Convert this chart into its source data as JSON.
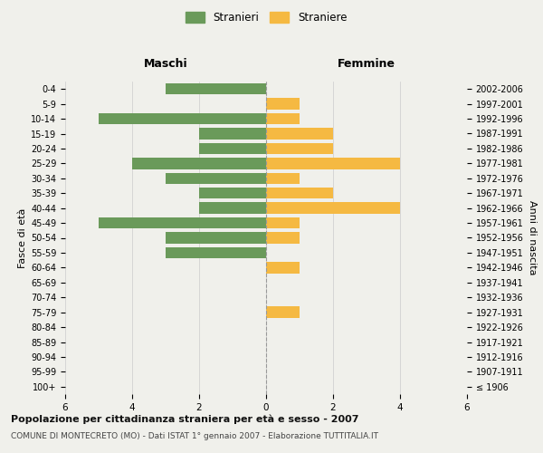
{
  "age_groups": [
    "100+",
    "95-99",
    "90-94",
    "85-89",
    "80-84",
    "75-79",
    "70-74",
    "65-69",
    "60-64",
    "55-59",
    "50-54",
    "45-49",
    "40-44",
    "35-39",
    "30-34",
    "25-29",
    "20-24",
    "15-19",
    "10-14",
    "5-9",
    "0-4"
  ],
  "birth_years": [
    "≤ 1906",
    "1907-1911",
    "1912-1916",
    "1917-1921",
    "1922-1926",
    "1927-1931",
    "1932-1936",
    "1937-1941",
    "1942-1946",
    "1947-1951",
    "1952-1956",
    "1957-1961",
    "1962-1966",
    "1967-1971",
    "1972-1976",
    "1977-1981",
    "1982-1986",
    "1987-1991",
    "1992-1996",
    "1997-2001",
    "2002-2006"
  ],
  "maschi": [
    0,
    0,
    0,
    0,
    0,
    0,
    0,
    0,
    0,
    3,
    3,
    5,
    2,
    2,
    3,
    4,
    2,
    2,
    5,
    0,
    3
  ],
  "femmine": [
    0,
    0,
    0,
    0,
    0,
    1,
    0,
    0,
    1,
    0,
    1,
    1,
    4,
    2,
    1,
    4,
    2,
    2,
    1,
    1,
    0
  ],
  "maschi_color": "#6a9a5a",
  "femmine_color": "#f5b942",
  "background_color": "#f0f0eb",
  "grid_color": "#cccccc",
  "center_line_color": "#999999",
  "xlim": 6,
  "title": "Popolazione per cittadinanza straniera per età e sesso - 2007",
  "subtitle": "COMUNE DI MONTECRETO (MO) - Dati ISTAT 1° gennaio 2007 - Elaborazione TUTTITALIA.IT",
  "ylabel_left": "Fasce di età",
  "ylabel_right": "Anni di nascita",
  "label_maschi": "Maschi",
  "label_femmine": "Femmine",
  "legend_stranieri": "Stranieri",
  "legend_straniere": "Straniere"
}
